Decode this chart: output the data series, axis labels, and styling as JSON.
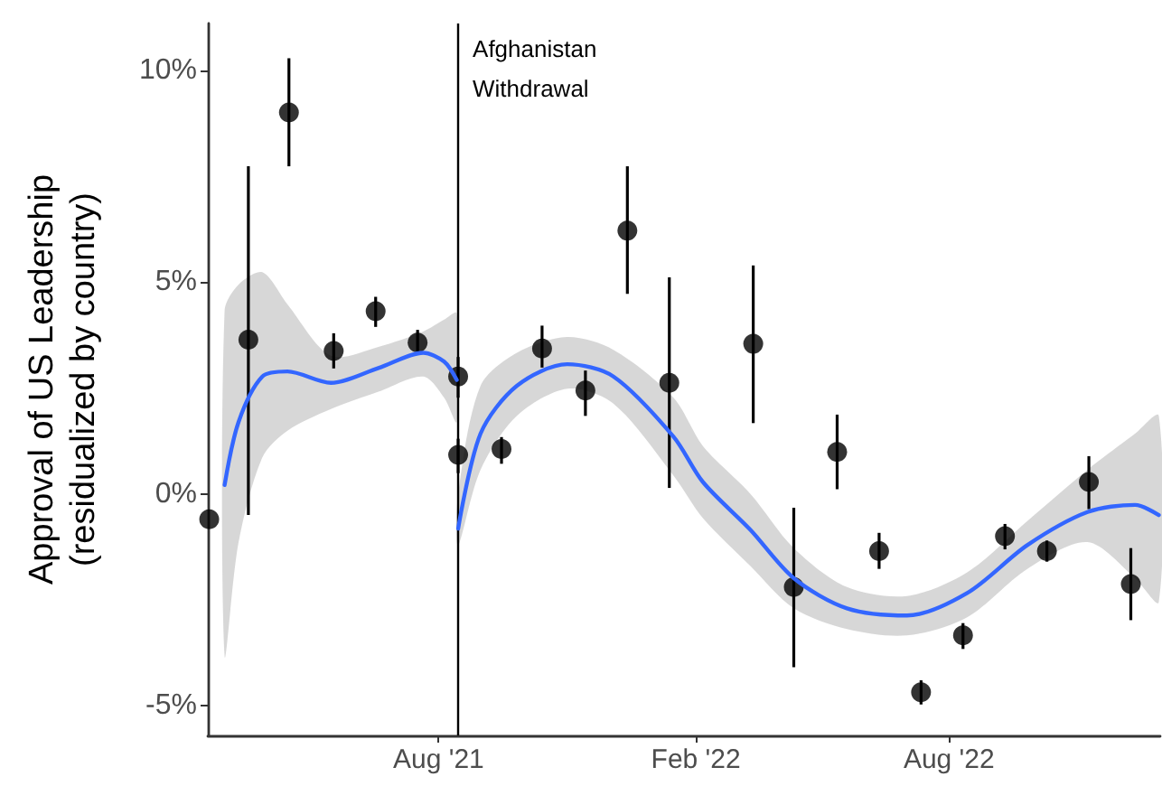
{
  "chart_data": {
    "type": "scatter",
    "ylabel": "Approval of US Leadership\n(residualized by country)",
    "xlim": [
      "2021-02-17",
      "2022-12-30"
    ],
    "ylim": [
      -5.7,
      11.1
    ],
    "xticks": [
      {
        "value": "2021-08-01",
        "label": "Aug '21"
      },
      {
        "value": "2022-02-01",
        "label": "Feb '22"
      },
      {
        "value": "2022-08-01",
        "label": "Aug '22"
      }
    ],
    "yticks": [
      {
        "value": -5,
        "label": "-5%"
      },
      {
        "value": 0,
        "label": "0%"
      },
      {
        "value": 5,
        "label": "5%"
      },
      {
        "value": 10,
        "label": "10%"
      }
    ],
    "marker": "circle",
    "ref_lines": [
      {
        "axis": "x",
        "value": "2021-08-15",
        "label": "Afghanistan Withdrawal",
        "color": "#000000"
      }
    ],
    "series": [
      {
        "color": "#000000",
        "x": [
          "2021-02-18",
          "2021-03-18",
          "2021-04-16",
          "2021-05-18",
          "2021-06-17",
          "2021-07-17",
          "2021-08-15",
          "2021-08-15",
          "2021-09-15",
          "2021-10-14",
          "2021-11-14",
          "2021-12-14",
          "2022-01-13",
          "2022-03-14",
          "2022-04-12",
          "2022-05-13",
          "2022-06-12",
          "2022-07-12",
          "2022-08-11",
          "2022-09-10",
          "2022-10-10",
          "2022-11-09",
          "2022-12-09"
        ],
        "values": [
          -0.6,
          3.64,
          9.0,
          3.37,
          4.31,
          3.57,
          2.77,
          0.92,
          1.06,
          3.43,
          2.44,
          6.21,
          2.62,
          3.54,
          -2.2,
          0.99,
          -1.35,
          -4.68,
          -3.34,
          -1.0,
          -1.35,
          0.28,
          -2.13
        ],
        "errors": [
          null,
          [
            -0.5,
            7.73
          ],
          [
            7.73,
            10.28
          ],
          [
            2.96,
            3.79
          ],
          [
            3.94,
            4.65
          ],
          [
            3.29,
            3.87
          ],
          [
            2.27,
            3.23
          ],
          [
            0.49,
            1.3
          ],
          [
            0.71,
            1.34
          ],
          [
            2.98,
            3.97
          ],
          [
            1.84,
            2.91
          ],
          [
            4.72,
            7.73
          ],
          [
            0.14,
            5.11
          ],
          [
            1.67,
            5.39
          ],
          [
            -4.09,
            -0.33
          ],
          [
            0.11,
            1.87
          ],
          [
            -1.77,
            -0.92
          ],
          [
            -4.97,
            -4.4
          ],
          [
            -3.66,
            -3.05
          ],
          [
            -1.31,
            -0.71
          ],
          [
            -1.6,
            -1.1
          ],
          [
            -0.36,
            0.89
          ],
          [
            -2.98,
            -1.28
          ]
        ]
      },
      {
        "type": "line",
        "color": "#3366ff",
        "marker": "none",
        "x": [
          "2021-03-01",
          "2021-03-11",
          "2021-03-28",
          "2021-04-15",
          "2021-05-16",
          "2021-06-19",
          "2021-07-21",
          "2021-08-05",
          "2021-08-14"
        ],
        "values": [
          0.21,
          1.7,
          2.77,
          2.89,
          2.62,
          2.97,
          3.33,
          3.12,
          2.69
        ],
        "lower": [
          -3.82,
          -1.14,
          0.86,
          1.49,
          2.0,
          2.41,
          2.77,
          2.27,
          1.7
        ],
        "upper": [
          4.32,
          4.94,
          5.23,
          4.47,
          3.26,
          3.47,
          3.83,
          4.11,
          4.26
        ]
      },
      {
        "type": "line",
        "color": "#3366ff",
        "marker": "none",
        "x": [
          "2021-08-15",
          "2021-08-31",
          "2021-09-26",
          "2021-11-01",
          "2021-12-04",
          "2022-01-16",
          "2022-02-06",
          "2022-03-12",
          "2022-04-12",
          "2022-05-20",
          "2022-07-02",
          "2022-08-14",
          "2022-09-26",
          "2022-11-08",
          "2022-12-12",
          "2022-12-29"
        ],
        "values": [
          -0.82,
          1.42,
          2.55,
          3.06,
          2.77,
          1.35,
          0.28,
          -0.85,
          -1.99,
          -2.7,
          -2.87,
          -2.34,
          -1.21,
          -0.43,
          -0.26,
          -0.5
        ],
        "lower": [
          -1.21,
          0.57,
          1.84,
          2.48,
          2.13,
          0.43,
          -0.57,
          -1.7,
          -2.7,
          -3.19,
          -3.34,
          -2.91,
          -1.77,
          -1.14,
          -1.99,
          -2.55
        ],
        "upper": [
          0,
          2.55,
          3.33,
          3.7,
          3.4,
          2.27,
          1.13,
          0,
          -1.28,
          -2.2,
          -2.41,
          -1.85,
          -0.64,
          0.57,
          1.42,
          1.84
        ]
      }
    ]
  }
}
